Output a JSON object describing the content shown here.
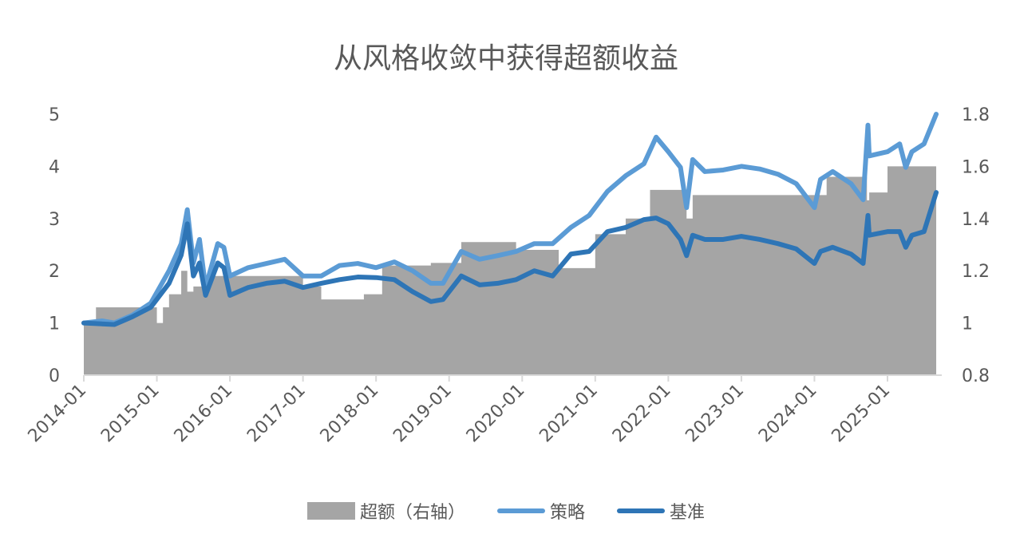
{
  "chart_data": {
    "type": "line+area",
    "title": "从风格收敛中获得超额收益",
    "xlabel": "",
    "ylabel": "",
    "y_left_lim": [
      0,
      5
    ],
    "y_right_lim": [
      0.8,
      1.8
    ],
    "y_left_ticks": [
      "0",
      "1",
      "2",
      "3",
      "4",
      "5"
    ],
    "y_right_ticks": [
      "0.8",
      "1",
      "1.2",
      "1.4",
      "1.6",
      "1.8"
    ],
    "x_ticks": [
      "2014-01",
      "2015-01",
      "2016-01",
      "2017-01",
      "2018-01",
      "2019-01",
      "2020-01",
      "2021-01",
      "2022-01",
      "2023-01",
      "2024-01",
      "2025-01"
    ],
    "grid": false,
    "legend_position": "bottom",
    "series": [
      {
        "name": "超额（右轴）",
        "type": "area",
        "axis": "right",
        "color": "#a5a5a5",
        "points": [
          [
            "2014-01",
            1.0
          ],
          [
            "2014-03",
            1.06
          ],
          [
            "2014-12",
            1.06
          ],
          [
            "2015-01",
            1.0
          ],
          [
            "2015-02",
            1.06
          ],
          [
            "2015-03",
            1.11
          ],
          [
            "2015-05",
            1.2
          ],
          [
            "2015-06",
            1.12
          ],
          [
            "2015-07",
            1.14
          ],
          [
            "2015-09",
            1.18
          ],
          [
            "2016-10",
            1.18
          ],
          [
            "2017-01",
            1.14
          ],
          [
            "2017-04",
            1.09
          ],
          [
            "2017-10",
            1.09
          ],
          [
            "2017-11",
            1.11
          ],
          [
            "2018-01",
            1.11
          ],
          [
            "2018-02",
            1.22
          ],
          [
            "2018-09",
            1.22
          ],
          [
            "2018-10",
            1.23
          ],
          [
            "2019-02",
            1.23
          ],
          [
            "2019-03",
            1.31
          ],
          [
            "2019-09",
            1.31
          ],
          [
            "2019-12",
            1.28
          ],
          [
            "2020-06",
            1.28
          ],
          [
            "2020-07",
            1.21
          ],
          [
            "2020-12",
            1.21
          ],
          [
            "2021-01",
            1.34
          ],
          [
            "2021-06",
            1.4
          ],
          [
            "2021-10",
            1.51
          ],
          [
            "2022-03",
            1.51
          ],
          [
            "2022-04",
            1.4
          ],
          [
            "2022-05",
            1.49
          ],
          [
            "2023-03",
            1.49
          ],
          [
            "2023-12",
            1.49
          ],
          [
            "2024-03",
            1.56
          ],
          [
            "2024-09",
            1.56
          ],
          [
            "2024-09-20",
            1.47
          ],
          [
            "2024-10",
            1.5
          ],
          [
            "2025-01",
            1.6
          ],
          [
            "2025-08",
            1.6
          ],
          [
            "2025-09",
            1.52
          ]
        ]
      },
      {
        "name": "策略",
        "type": "line",
        "axis": "left",
        "color": "#5b9bd5",
        "points": [
          [
            "2014-01",
            1.0
          ],
          [
            "2014-04",
            1.04
          ],
          [
            "2014-06",
            1.0
          ],
          [
            "2014-09",
            1.15
          ],
          [
            "2014-12",
            1.38
          ],
          [
            "2015-03",
            2.0
          ],
          [
            "2015-05",
            2.52
          ],
          [
            "2015-06",
            3.17
          ],
          [
            "2015-07",
            2.15
          ],
          [
            "2015-08",
            2.6
          ],
          [
            "2015-09",
            1.68
          ],
          [
            "2015-11",
            2.52
          ],
          [
            "2015-12",
            2.45
          ],
          [
            "2016-01",
            1.9
          ],
          [
            "2016-04",
            2.06
          ],
          [
            "2016-07",
            2.14
          ],
          [
            "2016-10",
            2.22
          ],
          [
            "2017-01",
            1.9
          ],
          [
            "2017-04",
            1.9
          ],
          [
            "2017-07",
            2.1
          ],
          [
            "2017-10",
            2.14
          ],
          [
            "2018-01",
            2.06
          ],
          [
            "2018-04",
            2.17
          ],
          [
            "2018-07",
            2.0
          ],
          [
            "2018-10",
            1.76
          ],
          [
            "2018-12",
            1.76
          ],
          [
            "2019-03",
            2.37
          ],
          [
            "2019-06",
            2.22
          ],
          [
            "2019-09",
            2.29
          ],
          [
            "2019-12",
            2.37
          ],
          [
            "2020-03",
            2.52
          ],
          [
            "2020-06",
            2.52
          ],
          [
            "2020-09",
            2.83
          ],
          [
            "2020-12",
            3.06
          ],
          [
            "2021-03",
            3.52
          ],
          [
            "2021-06",
            3.82
          ],
          [
            "2021-09",
            4.05
          ],
          [
            "2021-11",
            4.56
          ],
          [
            "2022-01",
            4.28
          ],
          [
            "2022-03",
            3.98
          ],
          [
            "2022-04",
            3.21
          ],
          [
            "2022-05",
            4.13
          ],
          [
            "2022-07",
            3.9
          ],
          [
            "2022-10",
            3.93
          ],
          [
            "2023-01",
            4.0
          ],
          [
            "2023-04",
            3.95
          ],
          [
            "2023-07",
            3.85
          ],
          [
            "2023-10",
            3.67
          ],
          [
            "2024-01",
            3.21
          ],
          [
            "2024-02",
            3.75
          ],
          [
            "2024-04",
            3.9
          ],
          [
            "2024-07",
            3.67
          ],
          [
            "2024-09",
            3.36
          ],
          [
            "2024-09-25",
            4.79
          ],
          [
            "2024-10",
            4.2
          ],
          [
            "2025-01",
            4.28
          ],
          [
            "2025-03",
            4.43
          ],
          [
            "2025-04",
            3.98
          ],
          [
            "2025-05",
            4.28
          ],
          [
            "2025-07",
            4.43
          ],
          [
            "2025-09",
            5.0
          ]
        ]
      },
      {
        "name": "基准",
        "type": "line",
        "axis": "left",
        "color": "#2e75b6",
        "points": [
          [
            "2014-01",
            1.0
          ],
          [
            "2014-06",
            0.97
          ],
          [
            "2014-09",
            1.12
          ],
          [
            "2014-12",
            1.3
          ],
          [
            "2015-03",
            1.76
          ],
          [
            "2015-05",
            2.3
          ],
          [
            "2015-06",
            2.9
          ],
          [
            "2015-07",
            1.9
          ],
          [
            "2015-08",
            2.15
          ],
          [
            "2015-09",
            1.53
          ],
          [
            "2015-11",
            2.15
          ],
          [
            "2015-12",
            2.06
          ],
          [
            "2016-01",
            1.53
          ],
          [
            "2016-04",
            1.68
          ],
          [
            "2016-07",
            1.76
          ],
          [
            "2016-10",
            1.8
          ],
          [
            "2017-01",
            1.68
          ],
          [
            "2017-04",
            1.76
          ],
          [
            "2017-07",
            1.83
          ],
          [
            "2017-10",
            1.88
          ],
          [
            "2018-01",
            1.87
          ],
          [
            "2018-04",
            1.83
          ],
          [
            "2018-07",
            1.6
          ],
          [
            "2018-10",
            1.41
          ],
          [
            "2018-12",
            1.45
          ],
          [
            "2019-03",
            1.9
          ],
          [
            "2019-06",
            1.73
          ],
          [
            "2019-09",
            1.76
          ],
          [
            "2019-12",
            1.83
          ],
          [
            "2020-03",
            2.0
          ],
          [
            "2020-06",
            1.9
          ],
          [
            "2020-09",
            2.32
          ],
          [
            "2020-12",
            2.37
          ],
          [
            "2021-03",
            2.75
          ],
          [
            "2021-06",
            2.83
          ],
          [
            "2021-09",
            2.98
          ],
          [
            "2021-11",
            3.01
          ],
          [
            "2022-01",
            2.9
          ],
          [
            "2022-03",
            2.6
          ],
          [
            "2022-04",
            2.29
          ],
          [
            "2022-05",
            2.68
          ],
          [
            "2022-07",
            2.6
          ],
          [
            "2022-10",
            2.6
          ],
          [
            "2023-01",
            2.66
          ],
          [
            "2023-04",
            2.6
          ],
          [
            "2023-07",
            2.52
          ],
          [
            "2023-10",
            2.42
          ],
          [
            "2024-01",
            2.14
          ],
          [
            "2024-02",
            2.37
          ],
          [
            "2024-04",
            2.45
          ],
          [
            "2024-07",
            2.32
          ],
          [
            "2024-09",
            2.14
          ],
          [
            "2024-09-25",
            3.06
          ],
          [
            "2024-10",
            2.68
          ],
          [
            "2025-01",
            2.75
          ],
          [
            "2025-03",
            2.75
          ],
          [
            "2025-04",
            2.45
          ],
          [
            "2025-05",
            2.68
          ],
          [
            "2025-07",
            2.75
          ],
          [
            "2025-09",
            3.5
          ]
        ]
      }
    ]
  }
}
